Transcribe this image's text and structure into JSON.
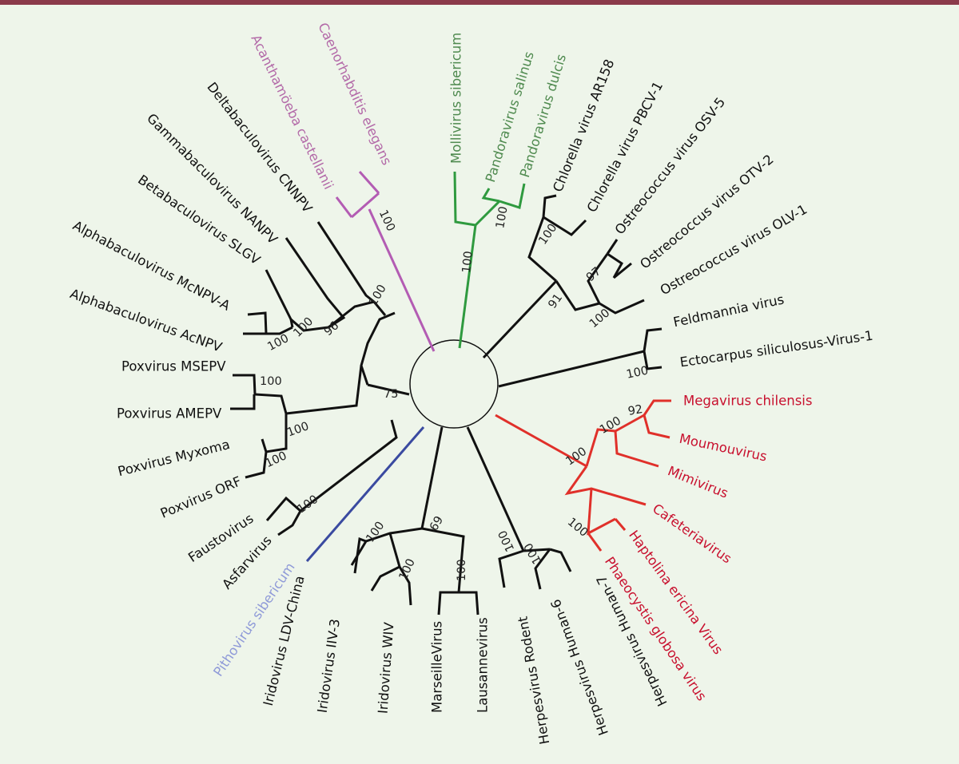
{
  "colors": {
    "background": "#eef5ea",
    "top_bar": "#8b3a4a",
    "default": "#111111",
    "green": "#2f9a3f",
    "green_label": "#4f8a4f",
    "purple": "#b35cb3",
    "purple_label": "#b36aa8",
    "red": "#e0302a",
    "red_label": "#c8102e",
    "blue": "#3a4aa0",
    "blue_label": "#8f9ad8"
  },
  "labels": {
    "caenorhabditis": "Caenorhabditis elegans",
    "acanthamoeba": "Acanthamöeba castellanii",
    "delta": "Deltabaculovirus CNNPV",
    "gamma": "Gammabaculovirus NANPV",
    "beta": "Betabaculovirus SLGV",
    "alpha_mc": "Alphabaculovirus McNPV-A",
    "alpha_ac": "Alphabaculovirus AcNPV",
    "pox_msepv": "Poxvirus MSEPV",
    "pox_amepv": "Poxvirus AMEPV",
    "pox_myxoma": "Poxvirus Myxoma",
    "pox_orf": "Poxvirus ORF",
    "faustovirus": "Faustovirus",
    "asfarvirus": "Asfarvirus",
    "pithovirus": "Pithovirus sibericum",
    "irido_ldv": "Iridovirus LDV-China",
    "irido_iiv3": "Iridovirus IIV-3",
    "irido_wiv": "Iridovirus WIV",
    "marseille": "MarseilleVirus",
    "lausanne": "Lausannevirus",
    "herpes_rodent": "Herpesvirus Rodent",
    "herpes_h6": "Herpesvirus Human-6",
    "herpes_h7": "Herpesvirus Human-7",
    "mollivirus": "Mollivirus sibericum",
    "pandora_salinus": "Pandoravirus salinus",
    "pandora_dulcis": "Pandoravirus dulcis",
    "chlorella_ar158": "Chlorella virus AR158",
    "chlorella_pbcv": "Chlorella virus PBCV-1",
    "ostreo_osv5": "Ostreococcus virus OSV-5",
    "ostreo_otv2": "Ostreococcus virus OTV-2",
    "ostreo_olv1": "Ostreococcus virus OLV-1",
    "feldmannia": "Feldmannia virus",
    "ectocarpus": "Ectocarpus siliculosus-Virus-1",
    "megavirus": "Megavirus chilensis",
    "moumouvirus": "Moumouvirus",
    "mimivirus": "Mimivirus",
    "cafeteria": "Cafeteriavirus",
    "haptolina": "Haptolina ericina Virus",
    "phaeocystis": "Phaeocystis globosa virus"
  },
  "bootstrap": {
    "euk": "100",
    "baculo": "100",
    "baculo_alpha_beta_gamma": "96",
    "baculo_alpha_beta": "100",
    "baculo_alpha": "100",
    "pox_clade": "75",
    "pox": "100",
    "pox_msepv_amepv": "100",
    "pox_myxoma_orf": "100",
    "asfar": "100",
    "irido_marseille": "69",
    "irido": "100",
    "irido_sub": "100",
    "marseille": "100",
    "herpes": "100",
    "herpes_human": "100",
    "pandora_molli": "100",
    "pandora": "100",
    "phyco": "91",
    "chlorella": "100",
    "ostreo_feld": "100",
    "ostreo": "97",
    "ectocarpus": "100",
    "mimi": "100",
    "mimi_sub": "100",
    "mega_mou": "92",
    "hapto": "100"
  }
}
